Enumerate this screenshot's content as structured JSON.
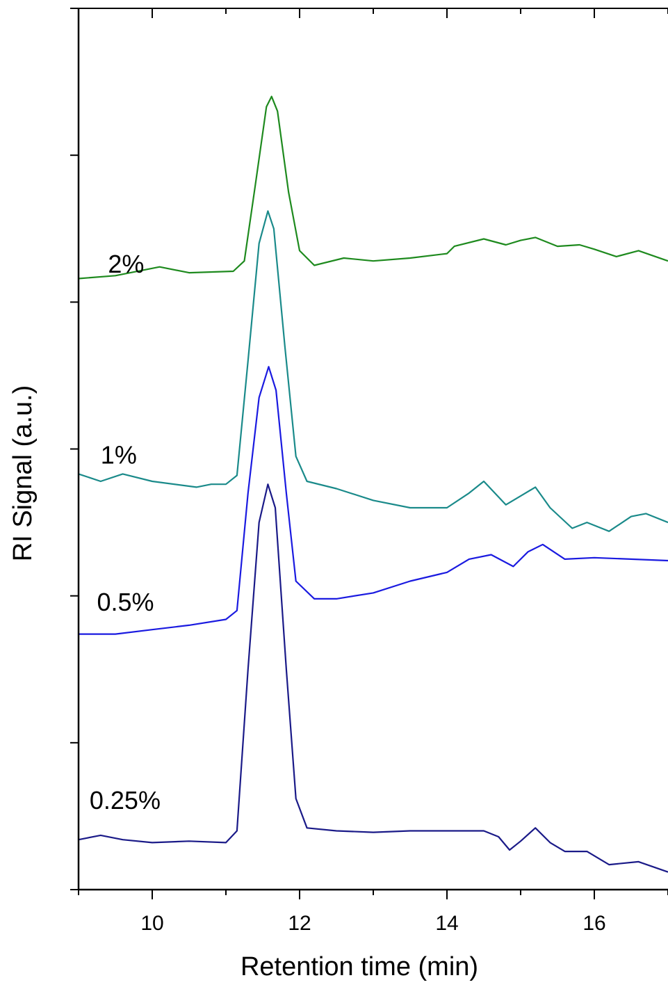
{
  "chart_data": {
    "type": "line",
    "xlabel": "Retention time (min)",
    "ylabel": "RI Signal (a.u.)",
    "xlim": [
      9,
      17
    ],
    "ylim": [
      0,
      6
    ],
    "x_ticks": [
      10,
      12,
      14,
      16
    ],
    "y_tick_values": [
      0,
      1,
      2,
      3,
      4,
      5,
      6
    ],
    "grid": false,
    "legend": "none",
    "series": [
      {
        "name": "2%",
        "color": "#1e8a1e",
        "label_at": [
          9.4,
          4.2
        ],
        "points": [
          [
            9.0,
            4.16
          ],
          [
            9.5,
            4.18
          ],
          [
            10.1,
            4.24
          ],
          [
            10.5,
            4.2
          ],
          [
            11.1,
            4.21
          ],
          [
            11.25,
            4.28
          ],
          [
            11.4,
            4.8
          ],
          [
            11.55,
            5.33
          ],
          [
            11.62,
            5.4
          ],
          [
            11.7,
            5.3
          ],
          [
            11.85,
            4.75
          ],
          [
            12.0,
            4.35
          ],
          [
            12.2,
            4.25
          ],
          [
            12.6,
            4.3
          ],
          [
            13.0,
            4.28
          ],
          [
            13.5,
            4.3
          ],
          [
            14.0,
            4.33
          ],
          [
            14.1,
            4.38
          ],
          [
            14.5,
            4.43
          ],
          [
            14.8,
            4.39
          ],
          [
            15.0,
            4.42
          ],
          [
            15.2,
            4.44
          ],
          [
            15.5,
            4.38
          ],
          [
            15.8,
            4.39
          ],
          [
            16.0,
            4.36
          ],
          [
            16.3,
            4.31
          ],
          [
            16.6,
            4.35
          ],
          [
            17.0,
            4.28
          ]
        ]
      },
      {
        "name": "1%",
        "color": "#1a8a8a",
        "label_at": [
          9.3,
          2.9
        ],
        "points": [
          [
            9.0,
            2.83
          ],
          [
            9.3,
            2.78
          ],
          [
            9.6,
            2.83
          ],
          [
            10.0,
            2.78
          ],
          [
            10.6,
            2.74
          ],
          [
            10.8,
            2.76
          ],
          [
            11.0,
            2.76
          ],
          [
            11.15,
            2.82
          ],
          [
            11.3,
            3.6
          ],
          [
            11.45,
            4.4
          ],
          [
            11.57,
            4.62
          ],
          [
            11.65,
            4.5
          ],
          [
            11.8,
            3.7
          ],
          [
            11.95,
            2.95
          ],
          [
            12.1,
            2.78
          ],
          [
            12.5,
            2.73
          ],
          [
            13.0,
            2.65
          ],
          [
            13.5,
            2.6
          ],
          [
            14.0,
            2.6
          ],
          [
            14.3,
            2.7
          ],
          [
            14.5,
            2.78
          ],
          [
            14.8,
            2.62
          ],
          [
            15.0,
            2.68
          ],
          [
            15.2,
            2.74
          ],
          [
            15.4,
            2.6
          ],
          [
            15.7,
            2.46
          ],
          [
            15.9,
            2.5
          ],
          [
            16.2,
            2.44
          ],
          [
            16.5,
            2.54
          ],
          [
            16.7,
            2.56
          ],
          [
            17.0,
            2.5
          ]
        ]
      },
      {
        "name": "0.5%",
        "color": "#1a1ae0",
        "label_at": [
          9.25,
          1.9
        ],
        "points": [
          [
            9.0,
            1.74
          ],
          [
            9.5,
            1.74
          ],
          [
            10.0,
            1.77
          ],
          [
            10.5,
            1.8
          ],
          [
            11.0,
            1.84
          ],
          [
            11.15,
            1.9
          ],
          [
            11.3,
            2.7
          ],
          [
            11.45,
            3.35
          ],
          [
            11.58,
            3.56
          ],
          [
            11.68,
            3.4
          ],
          [
            11.82,
            2.7
          ],
          [
            11.95,
            2.1
          ],
          [
            12.2,
            1.98
          ],
          [
            12.5,
            1.98
          ],
          [
            13.0,
            2.02
          ],
          [
            13.5,
            2.1
          ],
          [
            14.0,
            2.16
          ],
          [
            14.3,
            2.25
          ],
          [
            14.6,
            2.28
          ],
          [
            14.9,
            2.2
          ],
          [
            15.1,
            2.3
          ],
          [
            15.3,
            2.35
          ],
          [
            15.6,
            2.25
          ],
          [
            16.0,
            2.26
          ],
          [
            16.5,
            2.25
          ],
          [
            17.0,
            2.24
          ]
        ]
      },
      {
        "name": "0.25%",
        "color": "#1a1a88",
        "label_at": [
          9.15,
          0.55
        ],
        "points": [
          [
            9.0,
            0.34
          ],
          [
            9.3,
            0.37
          ],
          [
            9.6,
            0.34
          ],
          [
            10.0,
            0.32
          ],
          [
            10.5,
            0.33
          ],
          [
            11.0,
            0.32
          ],
          [
            11.15,
            0.4
          ],
          [
            11.3,
            1.5
          ],
          [
            11.45,
            2.5
          ],
          [
            11.57,
            2.76
          ],
          [
            11.67,
            2.6
          ],
          [
            11.82,
            1.5
          ],
          [
            11.95,
            0.62
          ],
          [
            12.1,
            0.42
          ],
          [
            12.5,
            0.4
          ],
          [
            13.0,
            0.39
          ],
          [
            13.5,
            0.4
          ],
          [
            14.0,
            0.4
          ],
          [
            14.5,
            0.4
          ],
          [
            14.7,
            0.36
          ],
          [
            14.85,
            0.27
          ],
          [
            15.0,
            0.33
          ],
          [
            15.2,
            0.42
          ],
          [
            15.4,
            0.32
          ],
          [
            15.6,
            0.26
          ],
          [
            15.9,
            0.26
          ],
          [
            16.2,
            0.17
          ],
          [
            16.6,
            0.19
          ],
          [
            17.0,
            0.12
          ]
        ]
      }
    ]
  }
}
